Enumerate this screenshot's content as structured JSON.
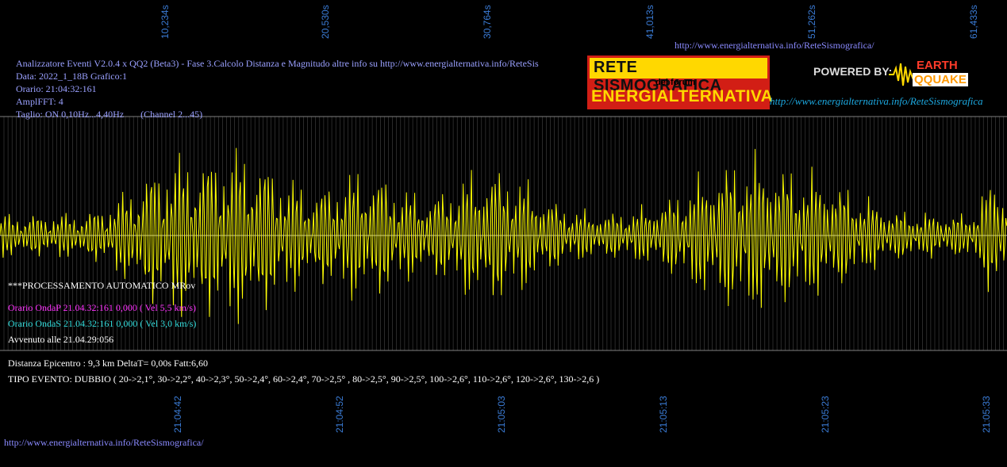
{
  "top_url": "http://www.energialternativa.info/ReteSismografica/",
  "bottom_url": "http://www.energialternativa.info/ReteSismografica/",
  "top_time_labels": [
    "10,234s",
    "20,530s",
    "30,764s",
    "41,013s",
    "51,262s",
    "61,433s"
  ],
  "bottom_time_labels": [
    "21:04:42",
    "21:04:52",
    "21:05:03",
    "21:05:13",
    "21:05:23",
    "21:05:33"
  ],
  "header": {
    "line1": "Analizzatore Eventi V2.0.4 x QQ2 (Beta3) - Fase 3.Calcolo Distanza e Magnitudo altre info su http://www.energialternativa.info/ReteSis",
    "line2": "Data: 2022_1_18B Grafico:1",
    "line3": "Orario: 21:04:32:161",
    "line4": "AmplFFT: 4",
    "line5": "Taglio: ON 0,10Hz...4,40Hz       (Channel 2...45)"
  },
  "banner": {
    "title": "RETE SISMOGRAFICA",
    "subtitle": "del forum",
    "brand": "ENERGIALTERNATIVA",
    "powered_by": "POWERED BY:",
    "logo_earth": "EARTH",
    "logo_quake": "QQUAKE",
    "url": "http://www.energialternativa.info/ReteSismografica"
  },
  "processing": {
    "status": "***PROCESSAMENTO AUTOMATICO MRov",
    "onda_p": "Orario OndaP 21.04.32:161  0,000 ( Vel 5,5 km/s)",
    "onda_s": "Orario OndaS 21.04.32:161  0,000 ( Vel 3,0 km/s)",
    "avvenuto": "Avvenuto alle 21.04.29:056",
    "distanza": "Distanza Epicentro : 9,3 km DeltaT= 0,00s  Fatt:6,60",
    "tipo_evento": "TIPO EVENTO: DUBBIO ( 20->2,1°, 30->2,2°, 40->2,3°, 50->2,4°, 60->2,4°, 70->2,5° , 80->2,5°, 90->2,5°, 100->2,6°, 110->2,6°, 120->2,6°, 130->2,6 )"
  },
  "colors": {
    "background": "#000000",
    "trace": "#ffff00",
    "grid": "#808080",
    "axis_labels": "#3a7bd5",
    "header_text": "#9aa0ff",
    "onda_p": "#ff33ff",
    "onda_s": "#33dddd",
    "white_text": "#ffffff"
  }
}
